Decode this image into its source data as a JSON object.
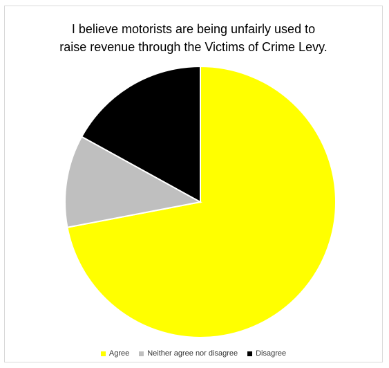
{
  "chart_data": {
    "type": "pie",
    "title_lines": [
      "I believe motorists are being unfairly used to",
      "raise revenue through the Victims of Crime Levy."
    ],
    "categories": [
      "Agree",
      "Neither agree nor disagree",
      "Disagree"
    ],
    "values": [
      72,
      11,
      17
    ],
    "colors": [
      "#FFFF00",
      "#BFBFBF",
      "#000000"
    ],
    "legend_position": "bottom"
  }
}
